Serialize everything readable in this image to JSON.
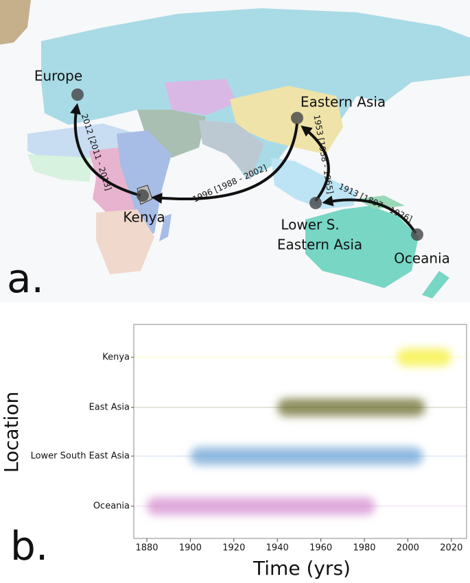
{
  "panels": {
    "a": "a.",
    "b": "b."
  },
  "map": {
    "nodes": [
      {
        "lines": [
          "Europe"
        ]
      },
      {
        "lines": [
          "Eastern Asia"
        ]
      },
      {
        "lines": [
          "Kenya"
        ]
      },
      {
        "lines": [
          "Lower S.",
          "Eastern Asia"
        ]
      },
      {
        "lines": [
          "Oceania"
        ]
      }
    ],
    "migrations": [
      {
        "label": "2012 [2011 - 2013]"
      },
      {
        "label": "1996 [1988 - 2002]"
      },
      {
        "label": "1953 [1938 - 1965]"
      },
      {
        "label": "1913 [1897 - 1926]"
      }
    ]
  },
  "chart_data": {
    "type": "range",
    "x_label": "Time (yrs)",
    "y_label": "Location",
    "categories": [
      "Kenya",
      "East Asia",
      "Lower South East Asia",
      "Oceania"
    ],
    "ranges": [
      [
        1995,
        2020
      ],
      [
        1940,
        2008
      ],
      [
        1900,
        2007
      ],
      [
        1880,
        1985
      ]
    ],
    "colors": [
      "#f5f03a",
      "#6b6b2e",
      "#6fa3d6",
      "#d58fd0"
    ],
    "xlim": [
      1874,
      2027
    ],
    "xticks": [
      1880,
      1900,
      1920,
      1940,
      1960,
      1980,
      2000,
      2020
    ]
  }
}
